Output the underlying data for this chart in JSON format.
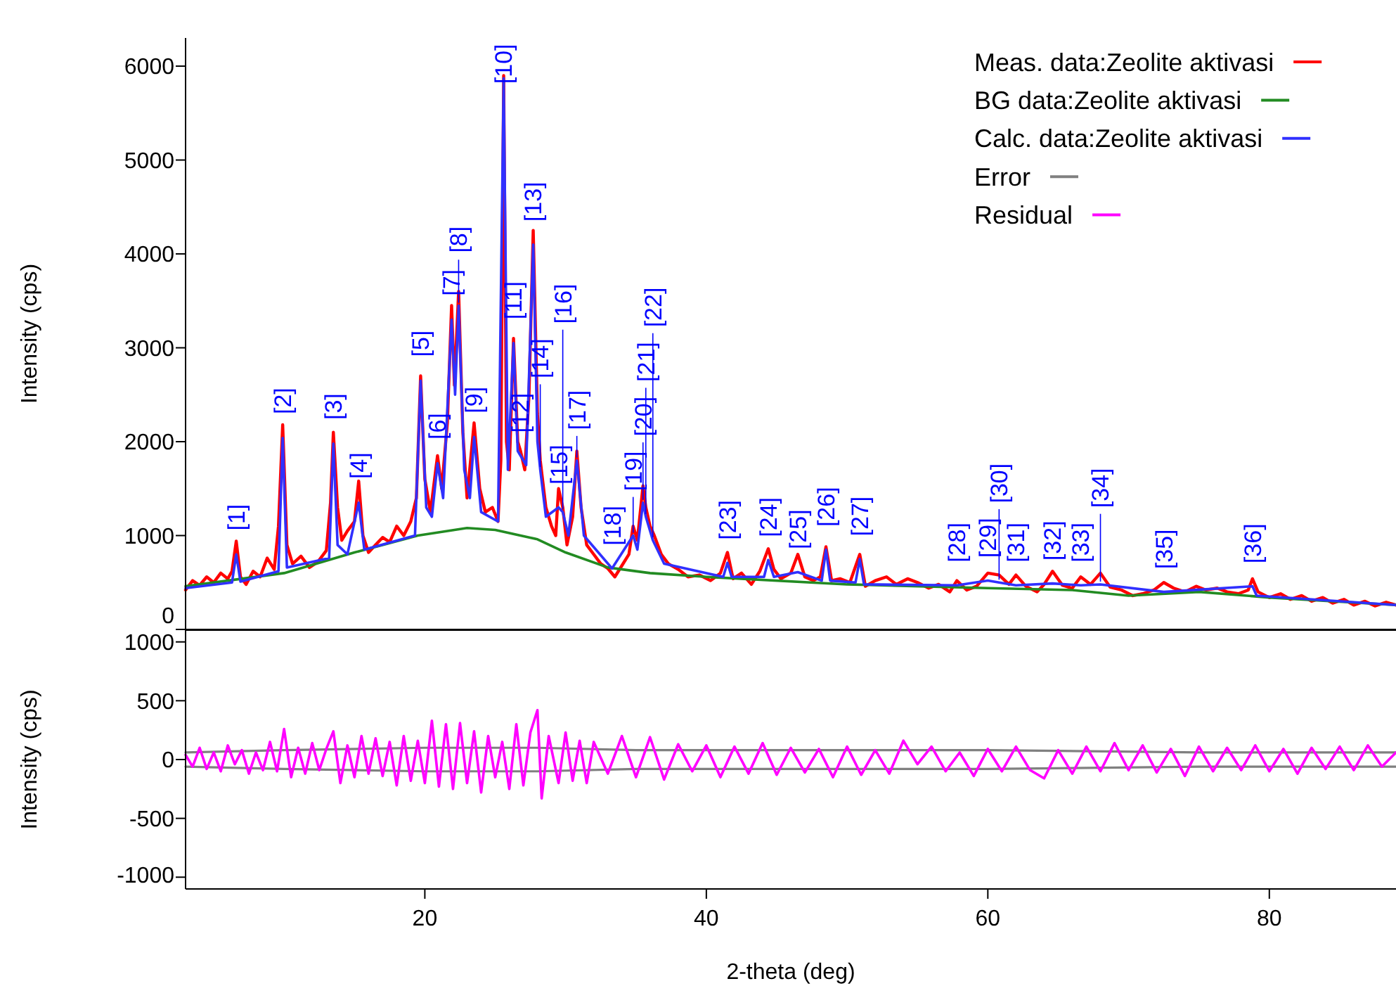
{
  "chart_data": [
    {
      "type": "line",
      "ylabel": "Intensity (cps)",
      "xlim": [
        3,
        89
      ],
      "ylim": [
        0,
        6300
      ],
      "yticks": [
        0,
        1000,
        2000,
        3000,
        4000,
        5000,
        6000
      ],
      "tick_labels": "y",
      "legend": "top right",
      "grid": false,
      "series": [
        {
          "name": "Meas. data:Zeolite aktivasi",
          "color": "#ff0000",
          "x": [
            3,
            3.5,
            4,
            4.5,
            5,
            5.5,
            6,
            6.3,
            6.6,
            6.9,
            7.3,
            7.8,
            8.3,
            8.8,
            9.3,
            9.6,
            9.9,
            10.2,
            10.6,
            11.2,
            11.8,
            12.4,
            13.0,
            13.3,
            13.5,
            13.8,
            14.1,
            14.5,
            15.0,
            15.3,
            15.6,
            16.0,
            16.5,
            17.0,
            17.5,
            18.0,
            18.5,
            19.0,
            19.4,
            19.7,
            20.0,
            20.4,
            20.9,
            21.2,
            21.6,
            21.9,
            22.1,
            22.4,
            22.7,
            23.0,
            23.5,
            23.9,
            24.3,
            24.8,
            25.2,
            25.4,
            25.6,
            25.8,
            26.0,
            26.3,
            26.6,
            26.8,
            27.1,
            27.4,
            27.7,
            28.0,
            28.2,
            28.6,
            29.0,
            29.3,
            29.5,
            29.8,
            30.1,
            30.5,
            30.8,
            31.1,
            31.5,
            32.0,
            32.5,
            33.0,
            33.5,
            34.0,
            34.5,
            34.8,
            35.1,
            35.5,
            35.7,
            36.0,
            36.3,
            36.8,
            37.3,
            38.0,
            38.7,
            39.5,
            40.3,
            41.0,
            41.5,
            41.9,
            42.5,
            43.2,
            43.8,
            44.4,
            44.8,
            45.3,
            46.0,
            46.5,
            47.0,
            47.6,
            48.1,
            48.5,
            48.9,
            49.5,
            50.2,
            50.9,
            51.3,
            52.0,
            52.8,
            53.5,
            54.3,
            55.0,
            55.8,
            56.5,
            57.3,
            57.8,
            58.5,
            59.2,
            60.0,
            60.8,
            61.5,
            62.0,
            62.7,
            63.5,
            64.0,
            64.6,
            65.3,
            66.0,
            66.6,
            67.3,
            68.0,
            68.7,
            69.5,
            70.3,
            71.0,
            71.8,
            72.5,
            73.2,
            74.0,
            74.8,
            75.5,
            76.3,
            77.0,
            77.8,
            78.5,
            78.8,
            79.2,
            80.0,
            80.8,
            81.5,
            82.3,
            83.0,
            83.8,
            84.5,
            85.3,
            86.0,
            86.8,
            87.5,
            88.3,
            89
          ],
          "values": [
            420,
            520,
            470,
            560,
            500,
            600,
            540,
            620,
            940,
            560,
            480,
            620,
            560,
            760,
            640,
            1100,
            2180,
            900,
            700,
            780,
            660,
            720,
            840,
            1350,
            2100,
            1300,
            950,
            1050,
            1150,
            1580,
            1000,
            820,
            900,
            980,
            930,
            1100,
            1000,
            1150,
            1400,
            2700,
            1600,
            1250,
            1850,
            1500,
            2200,
            3450,
            2600,
            3600,
            2100,
            1400,
            2200,
            1500,
            1250,
            1300,
            1150,
            1800,
            5900,
            2000,
            1700,
            3100,
            2000,
            1900,
            1700,
            2500,
            4250,
            2300,
            1800,
            1300,
            1100,
            1000,
            1500,
            1300,
            900,
            1200,
            1900,
            1300,
            900,
            800,
            700,
            650,
            560,
            680,
            800,
            1100,
            950,
            1530,
            1300,
            1100,
            1000,
            800,
            700,
            640,
            560,
            580,
            520,
            600,
            820,
            540,
            600,
            480,
            620,
            860,
            640,
            540,
            600,
            800,
            560,
            520,
            560,
            880,
            520,
            540,
            500,
            800,
            460,
            520,
            560,
            480,
            540,
            500,
            440,
            480,
            400,
            520,
            420,
            460,
            600,
            580,
            480,
            580,
            460,
            400,
            480,
            620,
            470,
            440,
            560,
            480,
            600,
            450,
            420,
            360,
            380,
            420,
            500,
            440,
            400,
            460,
            420,
            440,
            400,
            380,
            420,
            540,
            400,
            340,
            380,
            320,
            360,
            300,
            340,
            280,
            320,
            260,
            300,
            250,
            290,
            260
          ]
        },
        {
          "name": "BG data:Zeolite aktivasi",
          "color": "#228b22",
          "x": [
            3,
            10,
            15,
            19.5,
            23,
            25,
            28,
            30,
            33,
            36,
            40,
            50,
            60,
            66,
            70,
            75,
            80,
            89
          ],
          "values": [
            460,
            600,
            820,
            1000,
            1080,
            1060,
            960,
            820,
            660,
            600,
            560,
            480,
            440,
            420,
            360,
            400,
            340,
            260
          ]
        },
        {
          "name": "Calc. data:Zeolite aktivasi",
          "color": "#3030ff",
          "x": [
            3,
            6.3,
            6.6,
            6.9,
            9.6,
            9.9,
            10.2,
            13.2,
            13.5,
            13.8,
            14.5,
            15.3,
            15.7,
            19.3,
            19.7,
            20.1,
            20.5,
            20.9,
            21.3,
            21.9,
            22.15,
            22.4,
            22.8,
            23.2,
            23.5,
            24.0,
            25.2,
            25.6,
            25.9,
            26.3,
            26.6,
            26.8,
            27.2,
            27.7,
            28.0,
            28.2,
            28.6,
            29.5,
            29.8,
            30.2,
            30.8,
            31.3,
            33.3,
            34.8,
            35.1,
            35.5,
            35.7,
            36.2,
            37,
            41.2,
            41.5,
            41.8,
            44.1,
            44.4,
            44.8,
            46.5,
            48.2,
            48.5,
            48.8,
            50.6,
            50.9,
            51.2,
            57.8,
            60.0,
            60.8,
            62.0,
            64.6,
            66.6,
            68.0,
            72.5,
            78.8,
            79.1,
            89
          ],
          "values": [
            440,
            500,
            800,
            510,
            620,
            2040,
            660,
            760,
            1980,
            900,
            800,
            1350,
            850,
            1000,
            2650,
            1300,
            1200,
            1770,
            1400,
            3300,
            2500,
            3450,
            1700,
            1400,
            2050,
            1250,
            1150,
            5870,
            1700,
            3050,
            1900,
            1850,
            1750,
            4100,
            2000,
            1700,
            1200,
            1300,
            1250,
            1000,
            1800,
            1000,
            650,
            1000,
            850,
            1350,
            1200,
            950,
            700,
            560,
            710,
            560,
            560,
            740,
            560,
            610,
            520,
            850,
            520,
            500,
            750,
            480,
            470,
            520,
            500,
            470,
            490,
            470,
            480,
            400,
            460,
            360,
            260
          ]
        }
      ],
      "annotations": [
        {
          "text": "[1]",
          "x": 6.6,
          "y": 800
        },
        {
          "text": "[2]",
          "x": 9.9,
          "y": 2040
        },
        {
          "text": "[3]",
          "x": 13.5,
          "y": 1980
        },
        {
          "text": "[4]",
          "x": 15.3,
          "y": 1350
        },
        {
          "text": "[5]",
          "x": 19.7,
          "y": 2650
        },
        {
          "text": "[6]",
          "x": 20.9,
          "y": 1770
        },
        {
          "text": "[7]",
          "x": 21.9,
          "y": 3300
        },
        {
          "text": "[8]",
          "x": 22.4,
          "y": 3450
        },
        {
          "text": "[9]",
          "x": 23.5,
          "y": 2050
        },
        {
          "text": "[10]",
          "x": 25.6,
          "y": 5870
        },
        {
          "text": "[11]",
          "x": 26.3,
          "y": 3050
        },
        {
          "text": "[12]",
          "x": 26.8,
          "y": 1850
        },
        {
          "text": "[13]",
          "x": 27.7,
          "y": 4100
        },
        {
          "text": "[14]",
          "x": 28.2,
          "y": 1700
        },
        {
          "text": "[15]",
          "x": 29.5,
          "y": 1300
        },
        {
          "text": "[16]",
          "x": 29.8,
          "y": 1250
        },
        {
          "text": "[17]",
          "x": 30.8,
          "y": 1800
        },
        {
          "text": "[18]",
          "x": 33.3,
          "y": 650
        },
        {
          "text": "[19]",
          "x": 34.8,
          "y": 1000
        },
        {
          "text": "[20]",
          "x": 35.5,
          "y": 1350
        },
        {
          "text": "[21]",
          "x": 35.7,
          "y": 1200
        },
        {
          "text": "[22]",
          "x": 36.2,
          "y": 950
        },
        {
          "text": "[23]",
          "x": 41.5,
          "y": 710
        },
        {
          "text": "[24]",
          "x": 44.4,
          "y": 740
        },
        {
          "text": "[25]",
          "x": 46.5,
          "y": 610
        },
        {
          "text": "[26]",
          "x": 48.5,
          "y": 850
        },
        {
          "text": "[27]",
          "x": 50.9,
          "y": 750
        },
        {
          "text": "[28]",
          "x": 57.8,
          "y": 470
        },
        {
          "text": "[29]",
          "x": 60.0,
          "y": 520
        },
        {
          "text": "[30]",
          "x": 60.8,
          "y": 500
        },
        {
          "text": "[31]",
          "x": 62.0,
          "y": 470
        },
        {
          "text": "[32]",
          "x": 64.6,
          "y": 490
        },
        {
          "text": "[33]",
          "x": 66.6,
          "y": 470
        },
        {
          "text": "[34]",
          "x": 68.0,
          "y": 480
        },
        {
          "text": "[35]",
          "x": 72.5,
          "y": 400
        },
        {
          "text": "[36]",
          "x": 78.8,
          "y": 460
        }
      ]
    },
    {
      "type": "line",
      "xlabel": "2-theta (deg)",
      "ylabel": "Intensity (cps)",
      "xlim": [
        3,
        89
      ],
      "xticks": [
        20,
        40,
        60,
        80
      ],
      "ylim": [
        -1100,
        1100
      ],
      "yticks": [
        1000,
        500,
        0,
        -500,
        -1000
      ],
      "grid": false,
      "legend": "top right",
      "series": [
        {
          "name": "Error",
          "color": "#808080",
          "x": [
            3,
            10,
            20,
            25,
            28,
            35,
            45,
            60,
            75,
            89
          ],
          "values": [
            60,
            80,
            100,
            100,
            100,
            80,
            80,
            80,
            60,
            60
          ]
        },
        {
          "color": "#808080",
          "x": [
            3,
            10,
            20,
            25,
            28,
            35,
            45,
            60,
            75,
            89
          ],
          "values": [
            -60,
            -80,
            -100,
            -100,
            -100,
            -80,
            -80,
            -80,
            -60,
            -60
          ]
        },
        {
          "name": "Residual",
          "color": "#ff00ff",
          "x": [
            3,
            3.5,
            4,
            4.5,
            5,
            5.5,
            6,
            6.5,
            7,
            7.5,
            8,
            8.5,
            9,
            9.5,
            10,
            10.5,
            11,
            11.5,
            12,
            12.5,
            13,
            13.5,
            14,
            14.5,
            15,
            15.5,
            16,
            16.5,
            17,
            17.5,
            18,
            18.5,
            19,
            19.5,
            20,
            20.5,
            21,
            21.5,
            22,
            22.5,
            23,
            23.5,
            24,
            24.5,
            25,
            25.5,
            26,
            26.5,
            27,
            27.5,
            28,
            28.3,
            28.8,
            29.5,
            30,
            30.5,
            31,
            31.5,
            32,
            33,
            34,
            35,
            36,
            37,
            38,
            39,
            40,
            41,
            42,
            43,
            44,
            45,
            46,
            47,
            48,
            49,
            50,
            51,
            52,
            53,
            54,
            55,
            56,
            57,
            58,
            59,
            60,
            61,
            62,
            63,
            64,
            65,
            66,
            67,
            68,
            69,
            70,
            71,
            72,
            73,
            74,
            75,
            76,
            77,
            78,
            79,
            80,
            81,
            82,
            83,
            84,
            85,
            86,
            87,
            88,
            89
          ],
          "values": [
            40,
            -60,
            100,
            -80,
            60,
            -100,
            120,
            -40,
            80,
            -120,
            60,
            -90,
            150,
            -100,
            260,
            -150,
            100,
            -120,
            140,
            -90,
            90,
            240,
            -200,
            120,
            -150,
            200,
            -120,
            180,
            -140,
            150,
            -220,
            200,
            -180,
            160,
            -200,
            330,
            -230,
            300,
            -250,
            310,
            -200,
            240,
            -280,
            200,
            -150,
            150,
            -250,
            300,
            -220,
            230,
            420,
            -330,
            200,
            -200,
            230,
            -180,
            160,
            -200,
            150,
            -120,
            200,
            -150,
            190,
            -170,
            130,
            -100,
            120,
            -150,
            110,
            -120,
            140,
            -130,
            100,
            -110,
            90,
            -150,
            110,
            -130,
            80,
            -120,
            160,
            -40,
            110,
            -100,
            60,
            -140,
            90,
            -100,
            110,
            -90,
            -160,
            80,
            -120,
            110,
            -100,
            140,
            -90,
            120,
            -110,
            90,
            -140,
            110,
            -100,
            100,
            -90,
            120,
            -100,
            90,
            -120,
            100,
            -80,
            110,
            -90,
            120,
            -60,
            60
          ]
        }
      ]
    }
  ]
}
